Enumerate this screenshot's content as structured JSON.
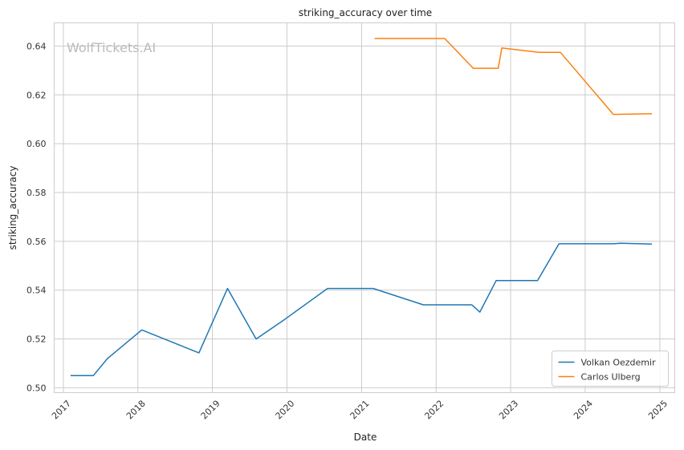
{
  "chart_data": {
    "type": "line",
    "title": "striking_accuracy over time",
    "xlabel": "Date",
    "ylabel": "striking_accuracy",
    "watermark": "WolfTickets.AI",
    "x_range": [
      "2016-11-17",
      "2025-03-15"
    ],
    "ylim": [
      0.498,
      0.6495
    ],
    "x_ticks": [
      "2017",
      "2018",
      "2019",
      "2020",
      "2021",
      "2022",
      "2023",
      "2024",
      "2025"
    ],
    "y_ticks": [
      "0.50",
      "0.52",
      "0.54",
      "0.56",
      "0.58",
      "0.60",
      "0.62",
      "0.64"
    ],
    "grid": true,
    "legend_position": "bottom-right",
    "series": [
      {
        "name": "Volkan Oezdemir",
        "color": "#1f77b4",
        "points": [
          [
            "2017-02-05",
            0.505
          ],
          [
            "2017-05-28",
            0.505
          ],
          [
            "2017-08-05",
            0.512
          ],
          [
            "2018-01-20",
            0.5237
          ],
          [
            "2018-10-27",
            0.5143
          ],
          [
            "2019-03-16",
            0.5407
          ],
          [
            "2019-08-03",
            0.52
          ],
          [
            "2019-12-21",
            0.528
          ],
          [
            "2020-07-18",
            0.5407
          ],
          [
            "2021-02-27",
            0.5407
          ],
          [
            "2021-10-30",
            0.534
          ],
          [
            "2022-06-25",
            0.534
          ],
          [
            "2022-08-03",
            0.531
          ],
          [
            "2022-10-22",
            0.5439
          ],
          [
            "2023-05-13",
            0.5439
          ],
          [
            "2023-08-26",
            0.559
          ],
          [
            "2024-05-18",
            0.559
          ],
          [
            "2024-06-22",
            0.5592
          ],
          [
            "2024-11-23",
            0.5589
          ]
        ]
      },
      {
        "name": "Carlos Ulberg",
        "color": "#ff7f0e",
        "points": [
          [
            "2021-03-06",
            0.6431
          ],
          [
            "2022-02-12",
            0.6431
          ],
          [
            "2022-07-02",
            0.6309
          ],
          [
            "2022-11-01",
            0.6309
          ],
          [
            "2022-11-19",
            0.6392
          ],
          [
            "2023-05-20",
            0.6374
          ],
          [
            "2023-09-02",
            0.6374
          ],
          [
            "2024-05-18",
            0.612
          ],
          [
            "2024-11-23",
            0.6123
          ]
        ]
      }
    ]
  }
}
